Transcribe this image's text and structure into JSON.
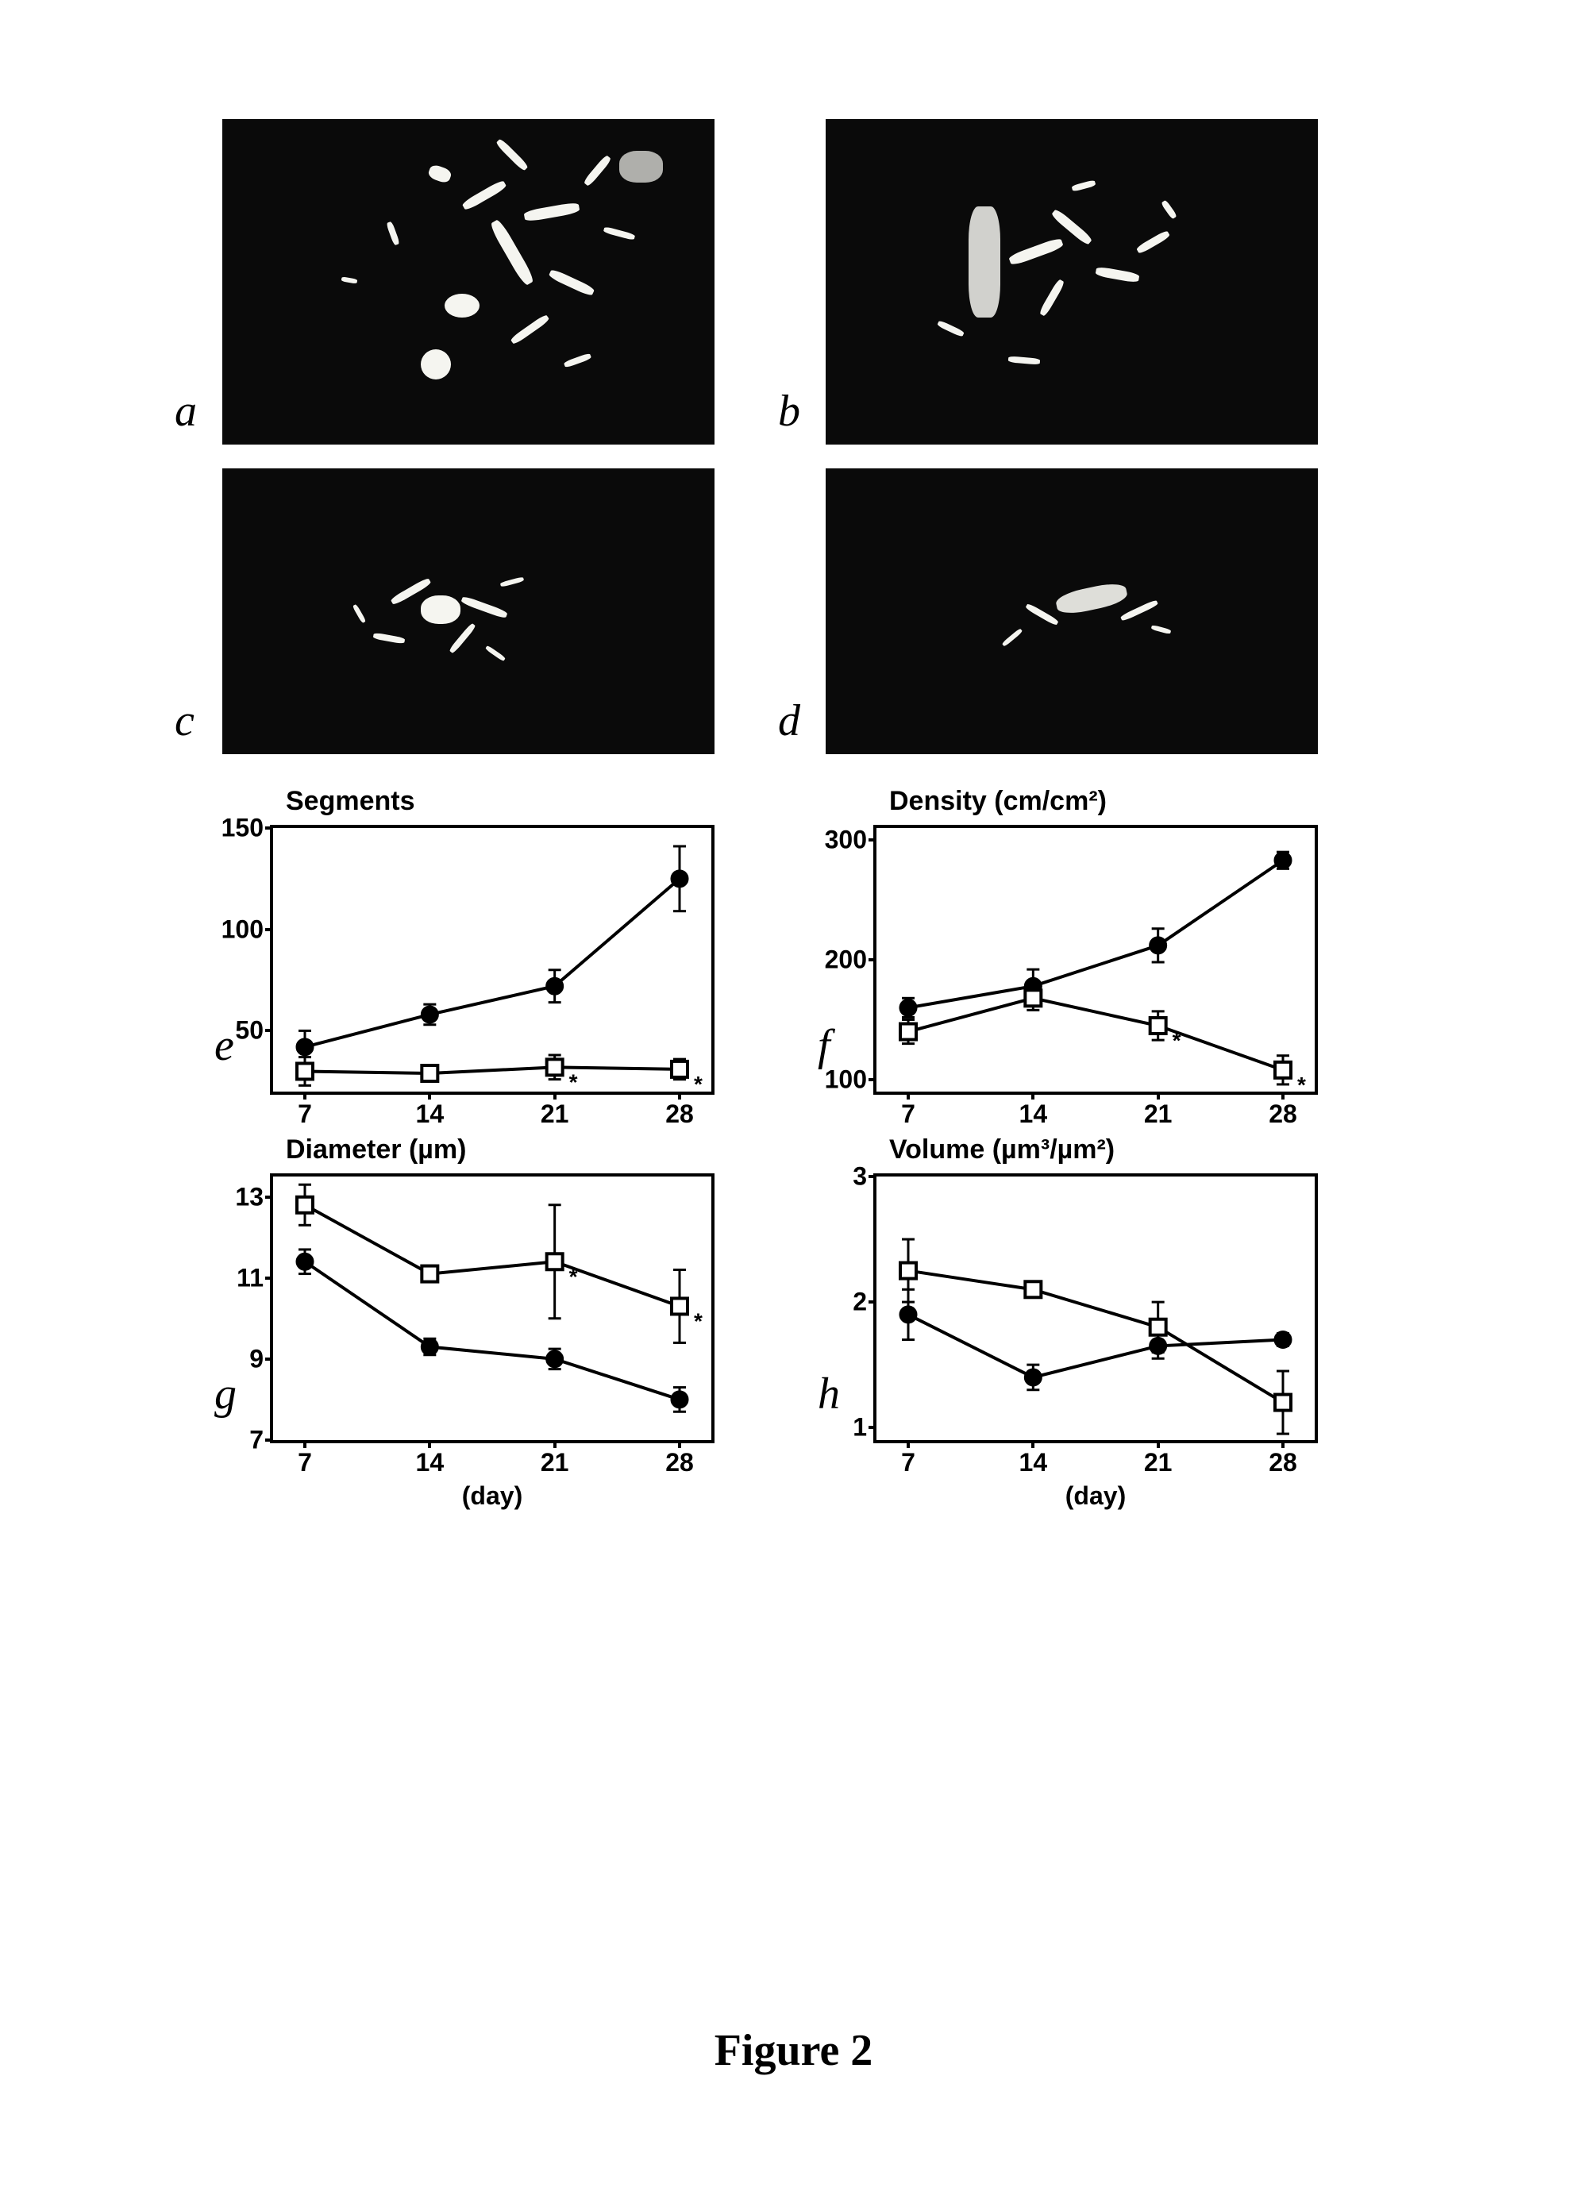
{
  "figure_label": "Figure 2",
  "panels": {
    "a": {
      "label": "a"
    },
    "b": {
      "label": "b"
    },
    "c": {
      "label": "c"
    },
    "d": {
      "label": "d"
    }
  },
  "charts": {
    "e": {
      "panel_label": "e",
      "title": "Segments",
      "type": "line",
      "x_values": [
        7,
        14,
        21,
        28
      ],
      "x_axis_label": "",
      "ylim": [
        20,
        150
      ],
      "yticks": [
        50,
        100,
        150
      ],
      "series_filled": {
        "y": [
          42,
          58,
          72,
          125
        ],
        "err": [
          8,
          5,
          8,
          16
        ],
        "marker": "filled-circle",
        "color": "#000000"
      },
      "series_open": {
        "y": [
          30,
          29,
          32,
          31
        ],
        "err": [
          7,
          4,
          6,
          5
        ],
        "marker": "open-square",
        "color": "#000000",
        "sig_at": [
          21,
          28
        ]
      },
      "line_width": 4,
      "marker_size": 10
    },
    "f": {
      "panel_label": "f",
      "title": "Density (cm/cm²)",
      "type": "line",
      "x_values": [
        7,
        14,
        21,
        28
      ],
      "x_axis_label": "",
      "ylim": [
        90,
        310
      ],
      "yticks": [
        100,
        200,
        300
      ],
      "series_filled": {
        "y": [
          160,
          178,
          212,
          283
        ],
        "err": [
          8,
          14,
          14,
          7
        ],
        "marker": "filled-circle",
        "color": "#000000"
      },
      "series_open": {
        "y": [
          140,
          168,
          145,
          108
        ],
        "err": [
          10,
          10,
          12,
          12
        ],
        "marker": "open-square",
        "color": "#000000",
        "sig_at": [
          21,
          28
        ]
      },
      "line_width": 4,
      "marker_size": 10
    },
    "g": {
      "panel_label": "g",
      "title": "Diameter (µm)",
      "type": "line",
      "x_values": [
        7,
        14,
        21,
        28
      ],
      "x_axis_label": "(day)",
      "ylim": [
        7,
        13.5
      ],
      "yticks": [
        7,
        9,
        11,
        13
      ],
      "series_filled": {
        "y": [
          11.4,
          9.3,
          9.0,
          8.0
        ],
        "err": [
          0.3,
          0.2,
          0.25,
          0.3
        ],
        "marker": "filled-circle",
        "color": "#000000"
      },
      "series_open": {
        "y": [
          12.8,
          11.1,
          11.4,
          10.3
        ],
        "err": [
          0.5,
          0.2,
          1.4,
          0.9
        ],
        "marker": "open-square",
        "color": "#000000",
        "sig_at": [
          21,
          28
        ]
      },
      "line_width": 4,
      "marker_size": 10
    },
    "h": {
      "panel_label": "h",
      "title": "Volume (µm³/µm²)",
      "type": "line",
      "x_values": [
        7,
        14,
        21,
        28
      ],
      "x_axis_label": "(day)",
      "ylim": [
        0.9,
        3
      ],
      "yticks": [
        1,
        2,
        3
      ],
      "series_filled": {
        "y": [
          1.9,
          1.4,
          1.65,
          1.7
        ],
        "err": [
          0.2,
          0.1,
          0.1,
          0.05
        ],
        "marker": "filled-circle",
        "color": "#000000"
      },
      "series_open": {
        "y": [
          2.25,
          2.1,
          1.8,
          1.2
        ],
        "err": [
          0.25,
          0.05,
          0.2,
          0.25
        ],
        "marker": "open-square",
        "color": "#000000",
        "sig_at": []
      },
      "line_width": 4,
      "marker_size": 10
    }
  },
  "colors": {
    "background": "#ffffff",
    "axis": "#000000",
    "micrograph_bg": "#0a0a0a",
    "speckle": "#f5f5f0"
  },
  "typography": {
    "panel_label_font": "Times New Roman",
    "panel_label_size_pt": 42,
    "chart_title_size_pt": 26,
    "tick_label_size_pt": 24,
    "caption_size_pt": 42
  }
}
